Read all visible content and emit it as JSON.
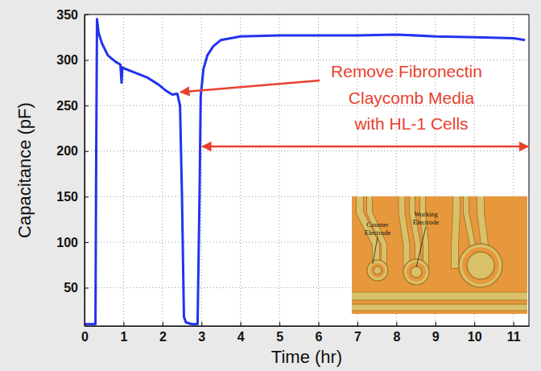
{
  "chart_data": {
    "type": "line",
    "x_label": "Time (hr)",
    "y_label": "Capacitance (pF)",
    "x": [
      0,
      0.28,
      0.3,
      0.32,
      0.36,
      0.45,
      0.6,
      0.8,
      0.92,
      0.95,
      0.97,
      1.0,
      1.3,
      1.6,
      1.9,
      2.1,
      2.25,
      2.38,
      2.45,
      2.5,
      2.55,
      2.6,
      2.75,
      2.9,
      2.95,
      2.98,
      3.05,
      3.15,
      3.3,
      3.5,
      4,
      5,
      6,
      7,
      8,
      9,
      10,
      11,
      11.3
    ],
    "values": [
      10,
      10,
      200,
      345,
      330,
      318,
      305,
      298,
      295,
      275,
      292,
      291,
      286,
      281,
      273,
      266,
      262,
      263,
      250,
      150,
      18,
      12,
      10,
      10,
      150,
      260,
      290,
      305,
      315,
      322,
      326,
      327,
      327,
      327,
      328,
      326,
      325,
      324,
      322
    ],
    "color": "#2233ee",
    "xlim": [
      0,
      11.4
    ],
    "ylim": [
      8,
      350
    ],
    "xticks": [
      0,
      1,
      2,
      3,
      4,
      5,
      6,
      7,
      8,
      9,
      10,
      11
    ],
    "yticks": [
      50,
      100,
      150,
      200,
      250,
      300,
      350
    ],
    "grid": true,
    "annotations": [
      {
        "text": "Remove Fibronectin",
        "x": 2.38,
        "y": 263
      },
      {
        "text": [
          "Claycomb Media",
          "with HL-1 Cells"
        ],
        "x": [
          2.98,
          11.4
        ],
        "y": 205
      }
    ],
    "inset": {
      "labels": [
        "Counter Electrode",
        "Working Electrode"
      ]
    }
  }
}
